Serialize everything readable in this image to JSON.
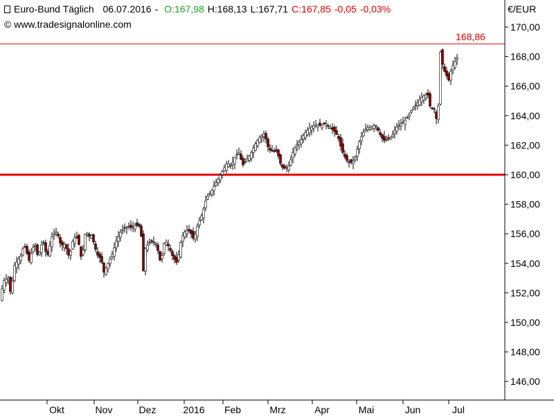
{
  "header": {
    "instrument": "Euro-Bund Täglich",
    "date": "06.07.2016",
    "open": "O:167,98",
    "high": "H:168,13",
    "low": "L:167,71",
    "close": "C:167,85",
    "change": "-0,05",
    "change_pct": "-0,03%",
    "copyright": "© www.tradesignalonline.com"
  },
  "colors": {
    "up": "#ffffff",
    "down": "#8b0000",
    "line": "#e00000",
    "open_text": "#19a619"
  },
  "chart_data": {
    "type": "candlestick",
    "unit": "€/EUR",
    "ylim": [
      144.5,
      171.0
    ],
    "y_ticks": [
      "146,00",
      "148,00",
      "150,00",
      "152,00",
      "154,00",
      "156,00",
      "158,00",
      "160,00",
      "162,00",
      "164,00",
      "166,00",
      "168,00",
      "170,00"
    ],
    "x_labels": [
      "Okt",
      "Nov",
      "Dez",
      "2016",
      "Feb",
      "Mrz",
      "Apr",
      "Mai",
      "Jun",
      "Jul"
    ],
    "horizontal_lines": [
      {
        "value": 168.86,
        "label": "168,86",
        "style": "thin"
      },
      {
        "value": 160.0,
        "label": "",
        "style": "thick"
      }
    ],
    "close_anchors": [
      [
        0,
        151.5
      ],
      [
        5,
        152.8
      ],
      [
        12,
        153.0
      ],
      [
        16,
        151.8
      ],
      [
        20,
        153.8
      ],
      [
        30,
        154.5
      ],
      [
        35,
        155.3
      ],
      [
        42,
        154.2
      ],
      [
        50,
        155.4
      ],
      [
        55,
        154.4
      ],
      [
        62,
        155.6
      ],
      [
        68,
        154.4
      ],
      [
        75,
        155.8
      ],
      [
        82,
        156.2
      ],
      [
        88,
        155.2
      ],
      [
        94,
        155.3
      ],
      [
        100,
        154.4
      ],
      [
        106,
        155.7
      ],
      [
        112,
        155.8
      ],
      [
        118,
        154.2
      ],
      [
        124,
        156.3
      ],
      [
        128,
        155.8
      ],
      [
        132,
        155.9
      ],
      [
        136,
        155.3
      ],
      [
        140,
        154.6
      ],
      [
        146,
        154.3
      ],
      [
        150,
        153.4
      ],
      [
        156,
        154.0
      ],
      [
        162,
        154.6
      ],
      [
        168,
        155.5
      ],
      [
        174,
        156.1
      ],
      [
        180,
        156.4
      ],
      [
        186,
        156.5
      ],
      [
        190,
        156.4
      ],
      [
        196,
        156.6
      ],
      [
        202,
        156.5
      ],
      [
        205,
        155.5
      ],
      [
        207,
        153.5
      ],
      [
        210,
        155.0
      ],
      [
        215,
        155.4
      ],
      [
        220,
        155.5
      ],
      [
        226,
        155.3
      ],
      [
        232,
        154.0
      ],
      [
        238,
        155.6
      ],
      [
        244,
        155.1
      ],
      [
        250,
        154.4
      ],
      [
        256,
        154.0
      ],
      [
        262,
        155.7
      ],
      [
        268,
        156.2
      ],
      [
        274,
        156.2
      ],
      [
        280,
        155.6
      ],
      [
        286,
        156.7
      ],
      [
        292,
        157.3
      ],
      [
        298,
        158.4
      ],
      [
        304,
        158.8
      ],
      [
        310,
        159.3
      ],
      [
        316,
        159.8
      ],
      [
        322,
        160.3
      ],
      [
        328,
        160.8
      ],
      [
        334,
        160.6
      ],
      [
        340,
        161.3
      ],
      [
        346,
        161.5
      ],
      [
        350,
        160.6
      ],
      [
        356,
        161.0
      ],
      [
        362,
        161.4
      ],
      [
        368,
        162.0
      ],
      [
        374,
        162.5
      ],
      [
        378,
        162.6
      ],
      [
        382,
        162.8
      ],
      [
        388,
        161.7
      ],
      [
        394,
        161.6
      ],
      [
        400,
        161.6
      ],
      [
        406,
        160.6
      ],
      [
        410,
        160.4
      ],
      [
        414,
        160.5
      ],
      [
        418,
        160.6
      ],
      [
        422,
        161.4
      ],
      [
        428,
        162.0
      ],
      [
        434,
        162.3
      ],
      [
        440,
        162.8
      ],
      [
        446,
        163.1
      ],
      [
        452,
        163.3
      ],
      [
        458,
        163.4
      ],
      [
        464,
        163.3
      ],
      [
        470,
        163.5
      ],
      [
        476,
        163.2
      ],
      [
        482,
        163.0
      ],
      [
        488,
        162.6
      ],
      [
        494,
        161.6
      ],
      [
        500,
        161.0
      ],
      [
        506,
        160.8
      ],
      [
        512,
        161.0
      ],
      [
        518,
        162.1
      ],
      [
        524,
        162.8
      ],
      [
        530,
        163.2
      ],
      [
        536,
        163.2
      ],
      [
        542,
        163.4
      ],
      [
        548,
        162.8
      ],
      [
        554,
        162.3
      ],
      [
        560,
        162.4
      ],
      [
        566,
        162.6
      ],
      [
        572,
        163.2
      ],
      [
        578,
        163.4
      ],
      [
        584,
        163.6
      ],
      [
        590,
        164.0
      ],
      [
        596,
        164.5
      ],
      [
        602,
        164.8
      ],
      [
        608,
        165.2
      ],
      [
        614,
        165.4
      ],
      [
        618,
        165.4
      ],
      [
        620,
        164.7
      ],
      [
        624,
        164.5
      ],
      [
        628,
        164.4
      ],
      [
        630,
        163.8
      ],
      [
        632,
        163.5
      ],
      [
        634,
        165.8
      ],
      [
        636,
        168.3
      ],
      [
        640,
        167.2
      ],
      [
        644,
        166.8
      ],
      [
        648,
        166.4
      ],
      [
        652,
        167.2
      ],
      [
        656,
        167.6
      ],
      [
        660,
        167.9
      ]
    ]
  }
}
